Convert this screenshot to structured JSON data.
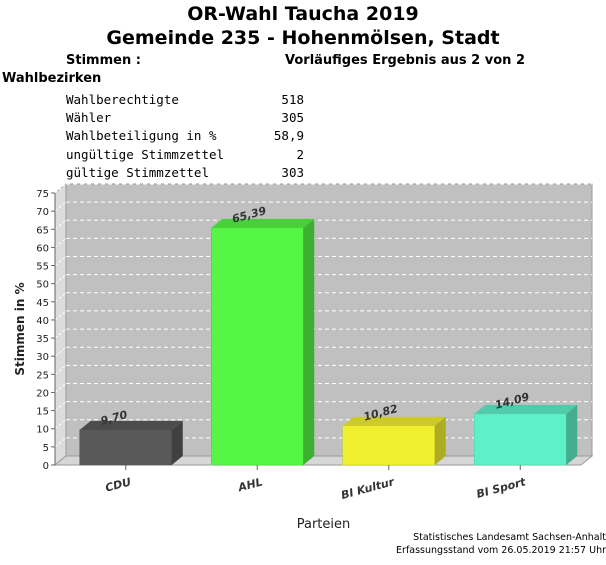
{
  "title_line1": "OR-Wahl Taucha 2019",
  "title_line2": "Gemeinde 235 - Hohenmölsen, Stadt",
  "votes_label": "Stimmen   :",
  "result_status": "Vorläufiges Ergebnis aus 2 von 2",
  "districts_label": "Wahlbezirken",
  "stats": [
    {
      "label": "Wahlberechtigte",
      "value": "518"
    },
    {
      "label": "Wähler",
      "value": "305"
    },
    {
      "label": "Wahlbeteiligung in %",
      "value": "58,9"
    },
    {
      "label": "ungültige Stimmzettel",
      "value": "2"
    },
    {
      "label": "gültige Stimmzettel",
      "value": "303"
    }
  ],
  "chart_data": {
    "type": "bar",
    "categories": [
      "CDU",
      "AHL",
      "BI Kultur",
      "BI Sport"
    ],
    "values": [
      9.7,
      65.39,
      10.82,
      14.09
    ],
    "value_labels": [
      "9,70",
      "65,39",
      "10,82",
      "14,09"
    ],
    "colors": [
      "#595959",
      "#55f545",
      "#f0ef30",
      "#5ef0c8"
    ],
    "xlabel": "Parteien",
    "ylabel": "Stimmen in %",
    "ylim": [
      0,
      75
    ],
    "yticks": [
      0,
      5,
      10,
      15,
      20,
      25,
      30,
      35,
      40,
      45,
      50,
      55,
      60,
      65,
      70,
      75
    ],
    "grid": true
  },
  "footer_line1": "Statistisches Landesamt Sachsen-Anhalt",
  "footer_line2": "Erfassungsstand vom 26.05.2019 21:57 Uhr"
}
